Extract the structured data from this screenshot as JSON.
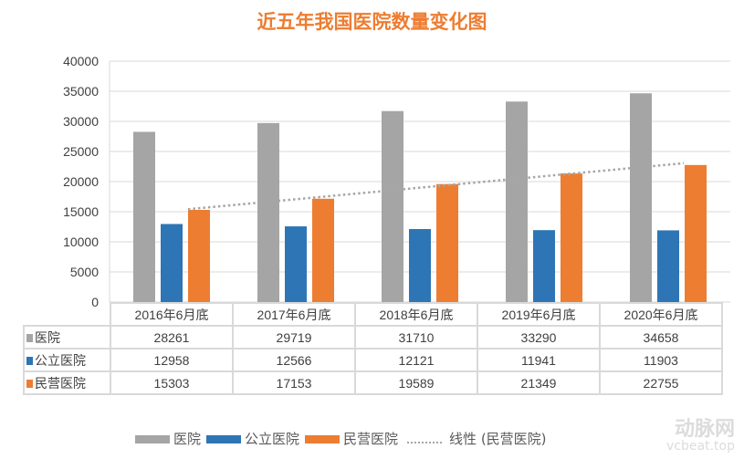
{
  "chart_data": {
    "type": "bar",
    "title": "近五年我国医院数量变化图",
    "categories": [
      "2016年6月底",
      "2017年6月底",
      "2018年6月底",
      "2019年6月底",
      "2020年6月底"
    ],
    "series": [
      {
        "name": "医院",
        "color": "#A5A5A5",
        "values": [
          28261,
          29719,
          31710,
          33290,
          34658
        ]
      },
      {
        "name": "公立医院",
        "color": "#2E75B6",
        "values": [
          12958,
          12566,
          12121,
          11941,
          11903
        ]
      },
      {
        "name": "民营医院",
        "color": "#ED7D31",
        "values": [
          15303,
          17153,
          19589,
          21349,
          22755
        ]
      }
    ],
    "trendline": {
      "name": "线性 (民营医院)",
      "type": "linear",
      "of_series": "民营医院",
      "color": "#A6A6A6"
    },
    "ylim": [
      0,
      40000
    ],
    "yticks": [
      "0",
      "5000",
      "10000",
      "15000",
      "20000",
      "25000",
      "30000",
      "35000",
      "40000"
    ],
    "grid": true,
    "legend": "bottom",
    "data_table": true
  },
  "watermark": {
    "text": "动脉网",
    "sub": "vcbeat.top"
  }
}
